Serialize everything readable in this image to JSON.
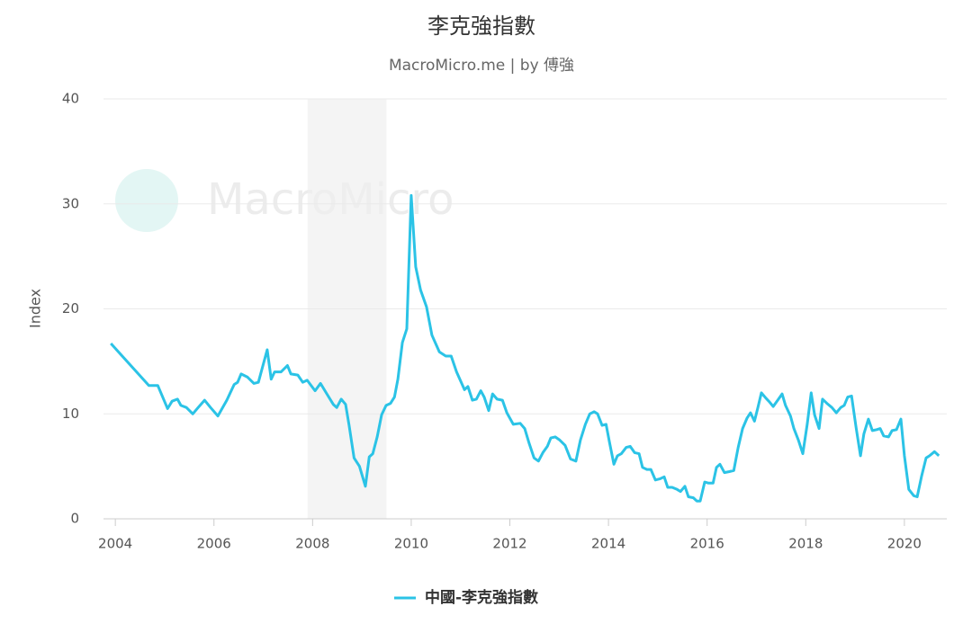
{
  "chart_data": {
    "type": "line",
    "title": "李克強指數",
    "subtitle": "MacroMicro.me | by 傅強",
    "watermark": "MacroMicro",
    "ylabel": "Index",
    "xlim": [
      2003.76,
      2020.86
    ],
    "xticks": [
      2004,
      2006,
      2008,
      2010,
      2012,
      2014,
      2016,
      2018,
      2020
    ],
    "ylim": [
      0,
      40
    ],
    "yticks": [
      0,
      10,
      20,
      30,
      40
    ],
    "grid": true,
    "legend": "bottom",
    "shaded": [
      [
        2007.9,
        2009.5
      ]
    ],
    "x": [
      2003.91,
      2004.68,
      2004.86,
      2005.06,
      2005.15,
      2005.26,
      2005.33,
      2005.44,
      2005.57,
      2005.68,
      2005.81,
      2005.93,
      2006.08,
      2006.26,
      2006.41,
      2006.48,
      2006.55,
      2006.68,
      2006.81,
      2006.9,
      2007.08,
      2007.16,
      2007.23,
      2007.36,
      2007.49,
      2007.56,
      2007.7,
      2007.8,
      2007.89,
      2008.05,
      2008.16,
      2008.29,
      2008.42,
      2008.49,
      2008.58,
      2008.67,
      2008.74,
      2008.84,
      2008.95,
      2009.07,
      2009.15,
      2009.22,
      2009.31,
      2009.4,
      2009.49,
      2009.58,
      2009.66,
      2009.73,
      2009.82,
      2009.91,
      2010.0,
      2010.09,
      2010.19,
      2010.31,
      2010.42,
      2010.57,
      2010.7,
      2010.81,
      2010.92,
      2011.08,
      2011.15,
      2011.24,
      2011.32,
      2011.41,
      2011.48,
      2011.57,
      2011.65,
      2011.74,
      2011.85,
      2011.94,
      2012.07,
      2012.21,
      2012.3,
      2012.39,
      2012.49,
      2012.58,
      2012.67,
      2012.76,
      2012.83,
      2012.92,
      2013.01,
      2013.12,
      2013.23,
      2013.34,
      2013.43,
      2013.53,
      2013.62,
      2013.71,
      2013.78,
      2013.87,
      2013.95,
      2014.02,
      2014.11,
      2014.18,
      2014.26,
      2014.36,
      2014.44,
      2014.53,
      2014.62,
      2014.69,
      2014.78,
      2014.86,
      2014.95,
      2015.04,
      2015.13,
      2015.2,
      2015.29,
      2015.39,
      2015.46,
      2015.55,
      2015.62,
      2015.72,
      2015.79,
      2015.86,
      2015.95,
      2016.03,
      2016.12,
      2016.19,
      2016.26,
      2016.35,
      2016.45,
      2016.54,
      2016.63,
      2016.72,
      2016.81,
      2016.88,
      2016.96,
      2017.03,
      2017.1,
      2017.19,
      2017.27,
      2017.34,
      2017.43,
      2017.52,
      2017.59,
      2017.69,
      2017.76,
      2017.85,
      2017.94,
      2018.03,
      2018.11,
      2018.18,
      2018.27,
      2018.34,
      2018.43,
      2018.53,
      2018.62,
      2018.71,
      2018.78,
      2018.85,
      2018.93,
      2019.02,
      2019.11,
      2019.18,
      2019.27,
      2019.35,
      2019.44,
      2019.51,
      2019.58,
      2019.68,
      2019.75,
      2019.84,
      2019.93,
      2020.0,
      2020.09,
      2020.19,
      2020.26,
      2020.35,
      2020.44,
      2020.51,
      2020.61,
      2020.7
    ],
    "series": [
      {
        "name": "中國-李克強指數",
        "color": "#2bc3e6",
        "values": [
          16.7,
          12.7,
          12.7,
          10.5,
          11.2,
          11.4,
          10.8,
          10.6,
          10.0,
          10.6,
          11.3,
          10.6,
          9.8,
          11.3,
          12.8,
          13.0,
          13.8,
          13.5,
          12.9,
          13.0,
          16.1,
          13.3,
          14.0,
          14.0,
          14.6,
          13.8,
          13.7,
          13.0,
          13.2,
          12.2,
          12.9,
          11.9,
          10.9,
          10.6,
          11.4,
          10.9,
          8.9,
          5.8,
          5.0,
          3.1,
          5.9,
          6.2,
          7.8,
          9.9,
          10.8,
          11.0,
          11.6,
          13.3,
          16.8,
          18.1,
          30.8,
          24.0,
          21.8,
          20.2,
          17.5,
          15.9,
          15.5,
          15.5,
          14.0,
          12.3,
          12.6,
          11.3,
          11.4,
          12.2,
          11.6,
          10.3,
          11.9,
          11.4,
          11.3,
          10.1,
          9.0,
          9.1,
          8.6,
          7.2,
          5.8,
          5.5,
          6.3,
          6.9,
          7.7,
          7.8,
          7.5,
          7.0,
          5.7,
          5.5,
          7.5,
          9.0,
          10.0,
          10.2,
          10.0,
          8.9,
          9.0,
          7.3,
          5.2,
          6.0,
          6.2,
          6.8,
          6.9,
          6.3,
          6.2,
          4.9,
          4.7,
          4.7,
          3.7,
          3.8,
          4.0,
          3.0,
          3.0,
          2.8,
          2.6,
          3.1,
          2.1,
          2.0,
          1.7,
          1.7,
          3.5,
          3.4,
          3.4,
          4.9,
          5.2,
          4.4,
          4.5,
          4.6,
          6.8,
          8.6,
          9.6,
          10.1,
          9.3,
          10.6,
          12.0,
          11.5,
          11.1,
          10.7,
          11.3,
          11.9,
          10.8,
          9.8,
          8.6,
          7.5,
          6.2,
          9.0,
          12.0,
          9.9,
          8.6,
          11.4,
          11.0,
          10.6,
          10.1,
          10.6,
          10.8,
          11.6,
          11.7,
          8.7,
          6.0,
          8.1,
          9.5,
          8.4,
          8.5,
          8.6,
          7.9,
          7.8,
          8.4,
          8.5,
          9.5,
          6.0,
          2.8,
          2.2,
          2.1,
          4.1,
          5.8,
          6.0,
          6.4,
          6.0
        ]
      }
    ]
  }
}
